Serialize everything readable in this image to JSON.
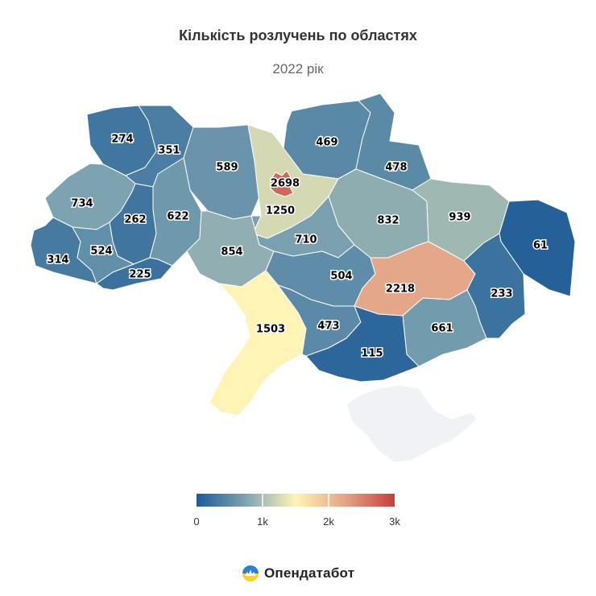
{
  "title": "Кількість розлучень по областях",
  "subtitle": "2022 рік",
  "brand": {
    "name": "Опендатабот",
    "logo_icon": "opendatabot-logo-icon"
  },
  "legend": {
    "min": 0,
    "max": 3000,
    "ticks": [
      "0",
      "1k",
      "2k",
      "3k"
    ],
    "colors": [
      "#1d5b96",
      "#7fa4b1",
      "#fff4b5",
      "#e3a487",
      "#c5403b"
    ]
  },
  "colors": {
    "no_data": "#f0f2f5"
  },
  "chart_data": {
    "type": "map",
    "title": "Кількість розлучень по областях",
    "subtitle": "2022 рік",
    "values": [
      274,
      351,
      469,
      478,
      589,
      2698,
      734,
      262,
      622,
      1250,
      832,
      939,
      61,
      710,
      314,
      524,
      854,
      225,
      504,
      2218,
      233,
      1503,
      473,
      661,
      115
    ]
  }
}
